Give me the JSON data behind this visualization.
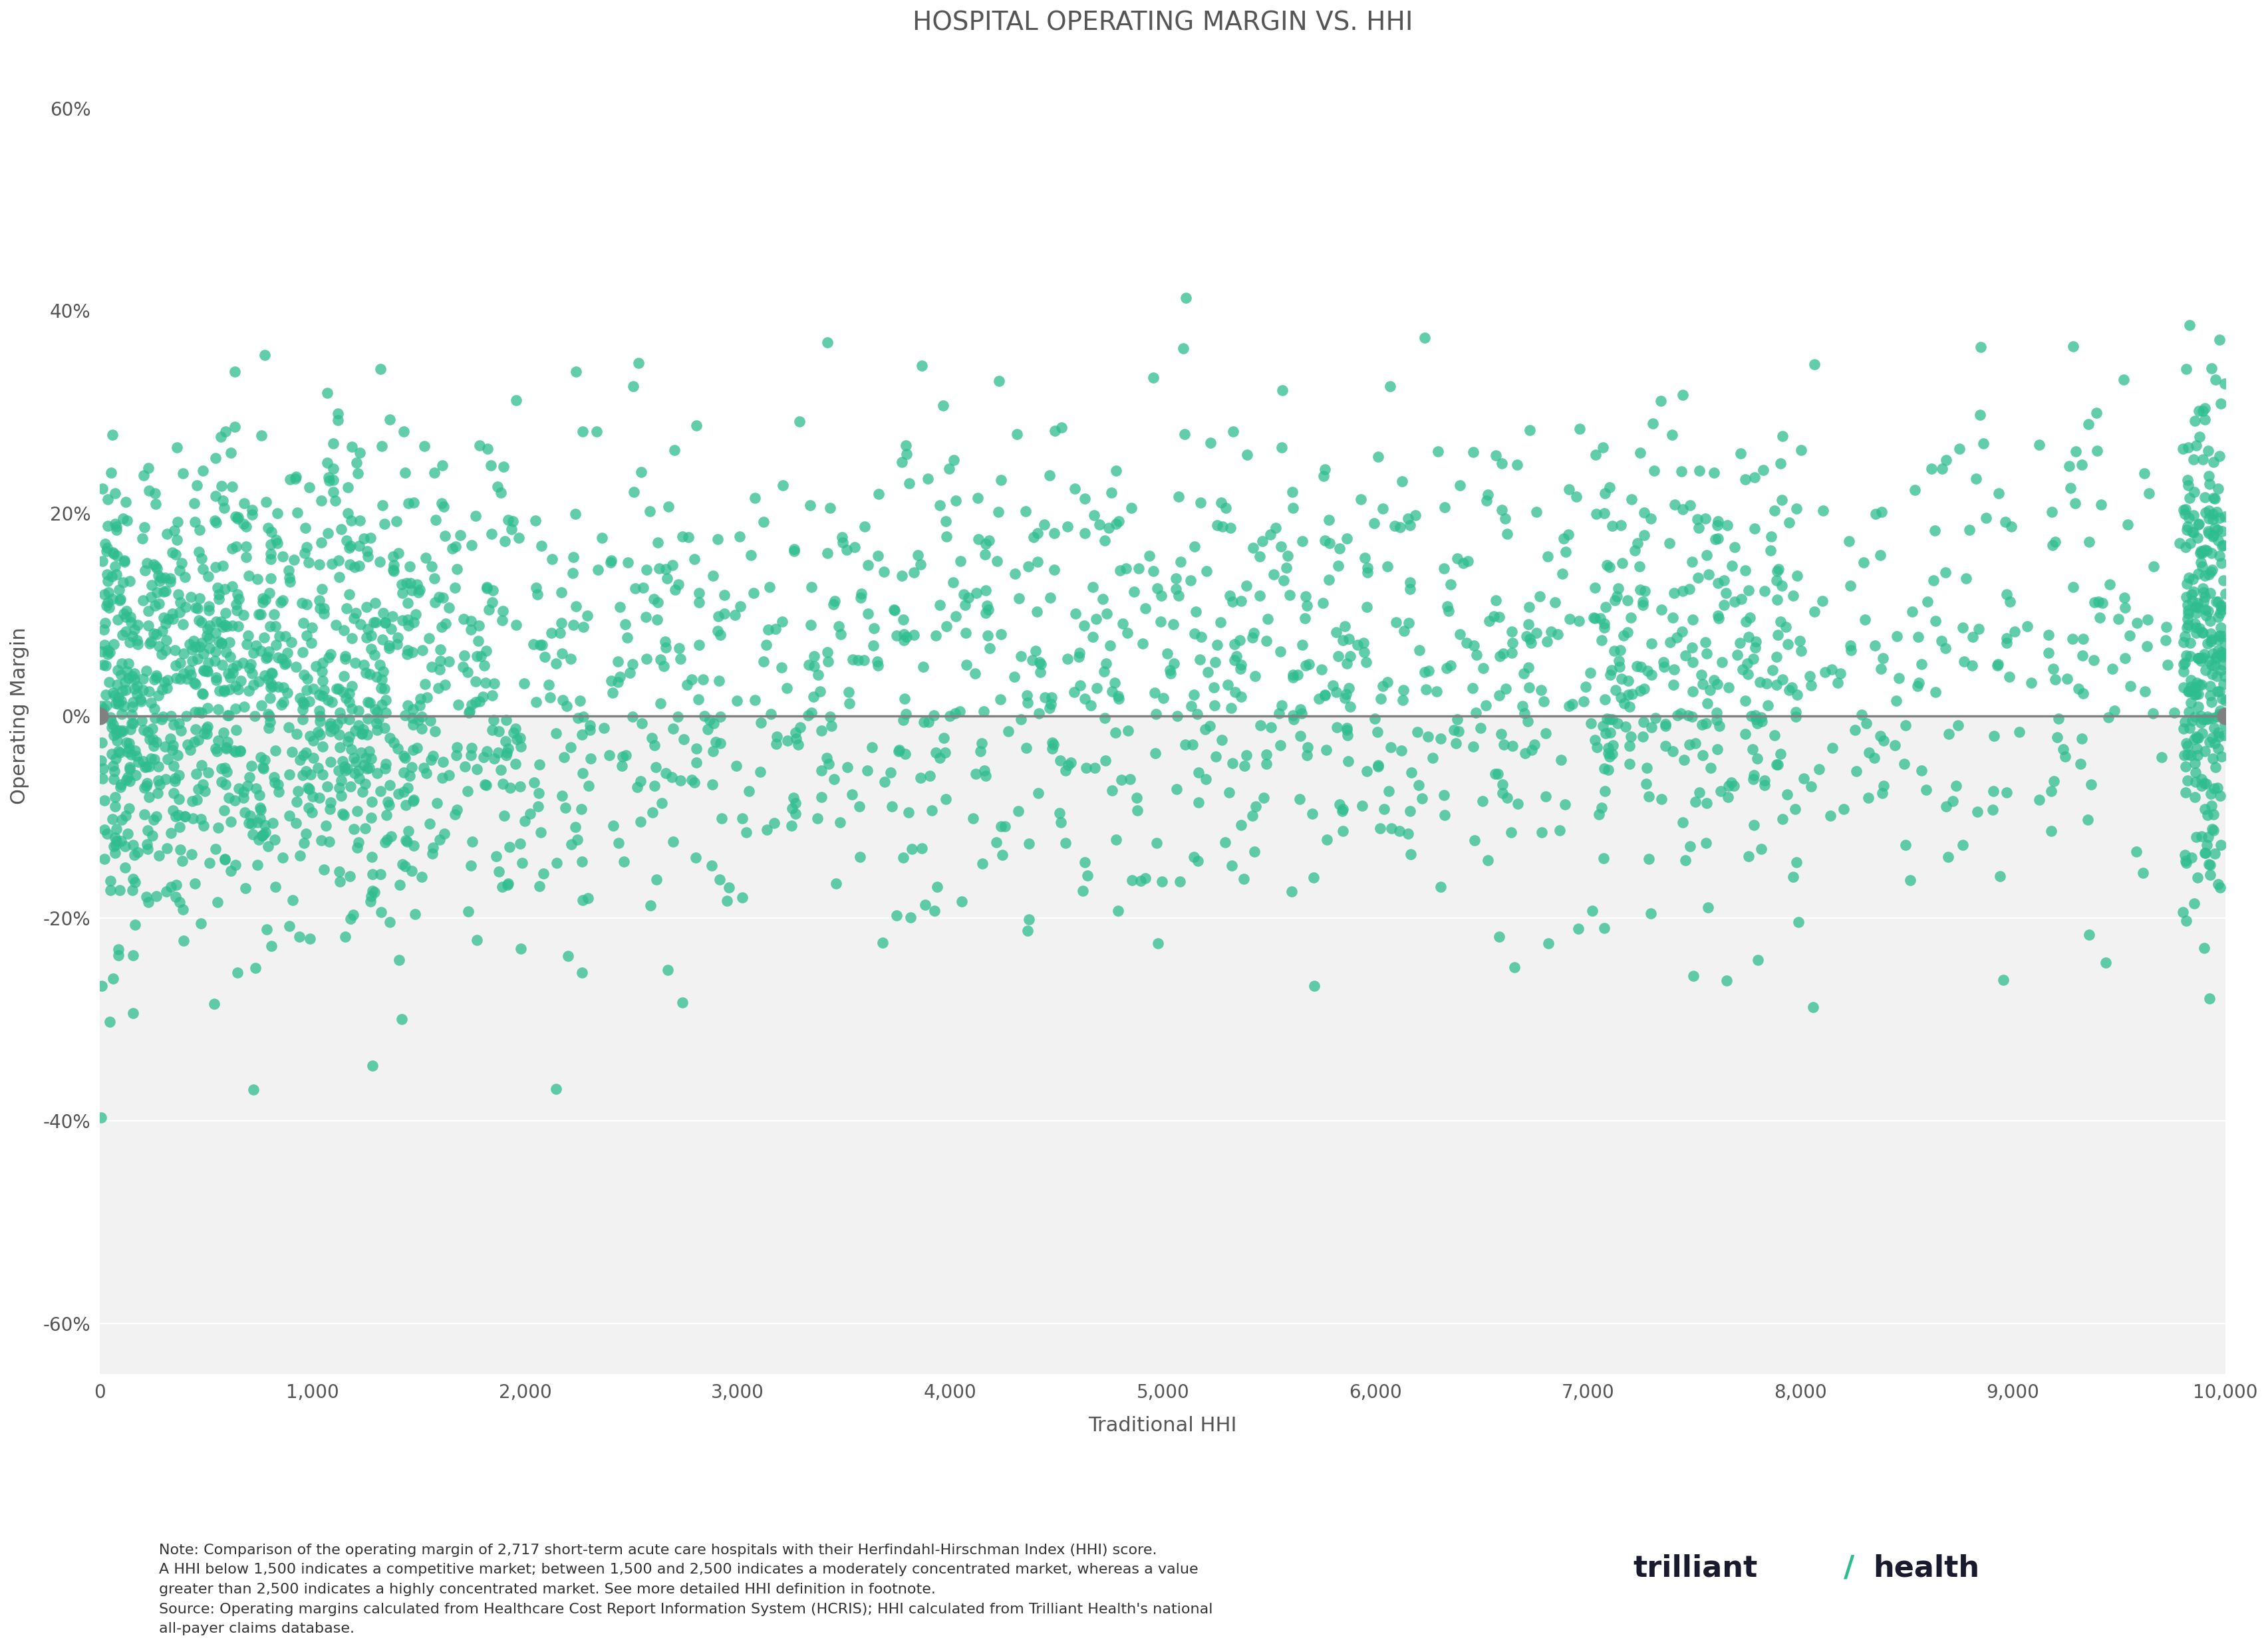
{
  "title": "HOSPITAL OPERATING MARGIN VS. HHI",
  "xlabel": "Traditional HHI",
  "ylabel": "Operating Margin",
  "xlim": [
    0,
    10000
  ],
  "ylim": [
    -0.65,
    0.65
  ],
  "dot_color": "#2EBD8E",
  "dot_size": 18,
  "dot_alpha": 0.75,
  "background_color": "#FFFFFF",
  "plot_bg_color": "#F2F2F2",
  "zero_line_color": "#808080",
  "zero_dot_color": "#808080",
  "grid_color": "#FFFFFF",
  "title_fontsize": 28,
  "axis_label_fontsize": 22,
  "tick_fontsize": 20,
  "note_text": "Note: Comparison of the operating margin of 2,717 short-term acute care hospitals with their Herfindahl-Hirschman Index (HHI) score.\nA HHI below 1,500 indicates a competitive market; between 1,500 and 2,500 indicates a moderately concentrated market, whereas a value\ngreater than 2,500 indicates a highly concentrated market. See more detailed HHI definition in footnote.\nSource: Operating margins calculated from Healthcare Cost Report Information System (HCRIS); HHI calculated from Trilliant Health's national\nall-payer claims database.",
  "note_fontsize": 16,
  "logo_text_trilliant": "trilliant",
  "logo_text_health": "health",
  "seed": 42
}
